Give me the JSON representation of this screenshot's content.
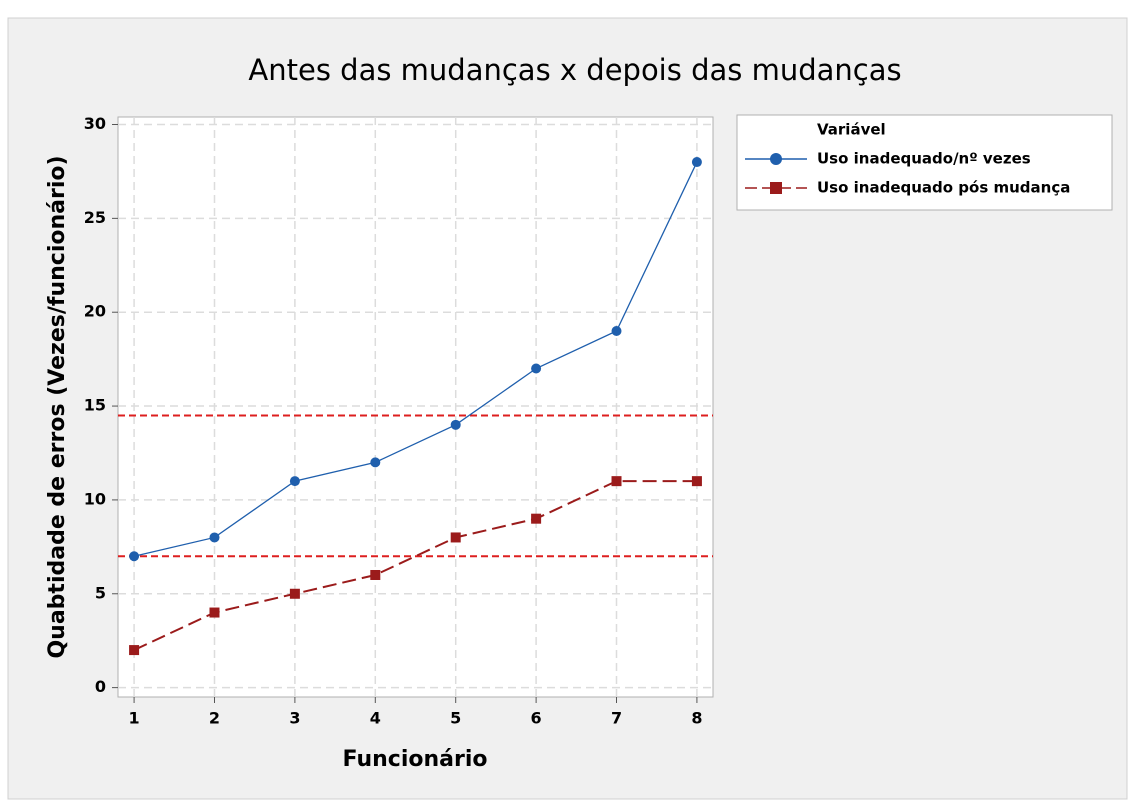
{
  "chart_data": {
    "type": "line",
    "title": "Antes das mudanças x depois das mudanças",
    "x_label": "Funcionário",
    "y_label": "Quabtidade de erros (Vezes/funcionário)",
    "x": [
      1,
      2,
      3,
      4,
      5,
      6,
      7,
      8
    ],
    "series": [
      {
        "name": "Uso inadequado/nº vezes",
        "color": "#1f5fad",
        "marker": "circle",
        "line_style": "solid",
        "values": [
          7,
          8,
          11,
          12,
          14,
          17,
          19,
          28
        ]
      },
      {
        "name": "Uso inadequado pós mudança",
        "color": "#9b1b1b",
        "marker": "square",
        "line_style": "dashed",
        "values": [
          2,
          4,
          5,
          6,
          8,
          9,
          11,
          11
        ]
      }
    ],
    "xlim": [
      0.8,
      8.2
    ],
    "ylim": [
      -0.5,
      30.4
    ],
    "xticks": [
      1,
      2,
      3,
      4,
      5,
      6,
      7,
      8
    ],
    "yticks": [
      0,
      5,
      10,
      15,
      20,
      25,
      30
    ],
    "grid": true,
    "reference_lines": [
      14.5,
      7
    ],
    "reference_color": "#dd1f1f",
    "legend_title": "Variável",
    "legend_position": "right"
  }
}
